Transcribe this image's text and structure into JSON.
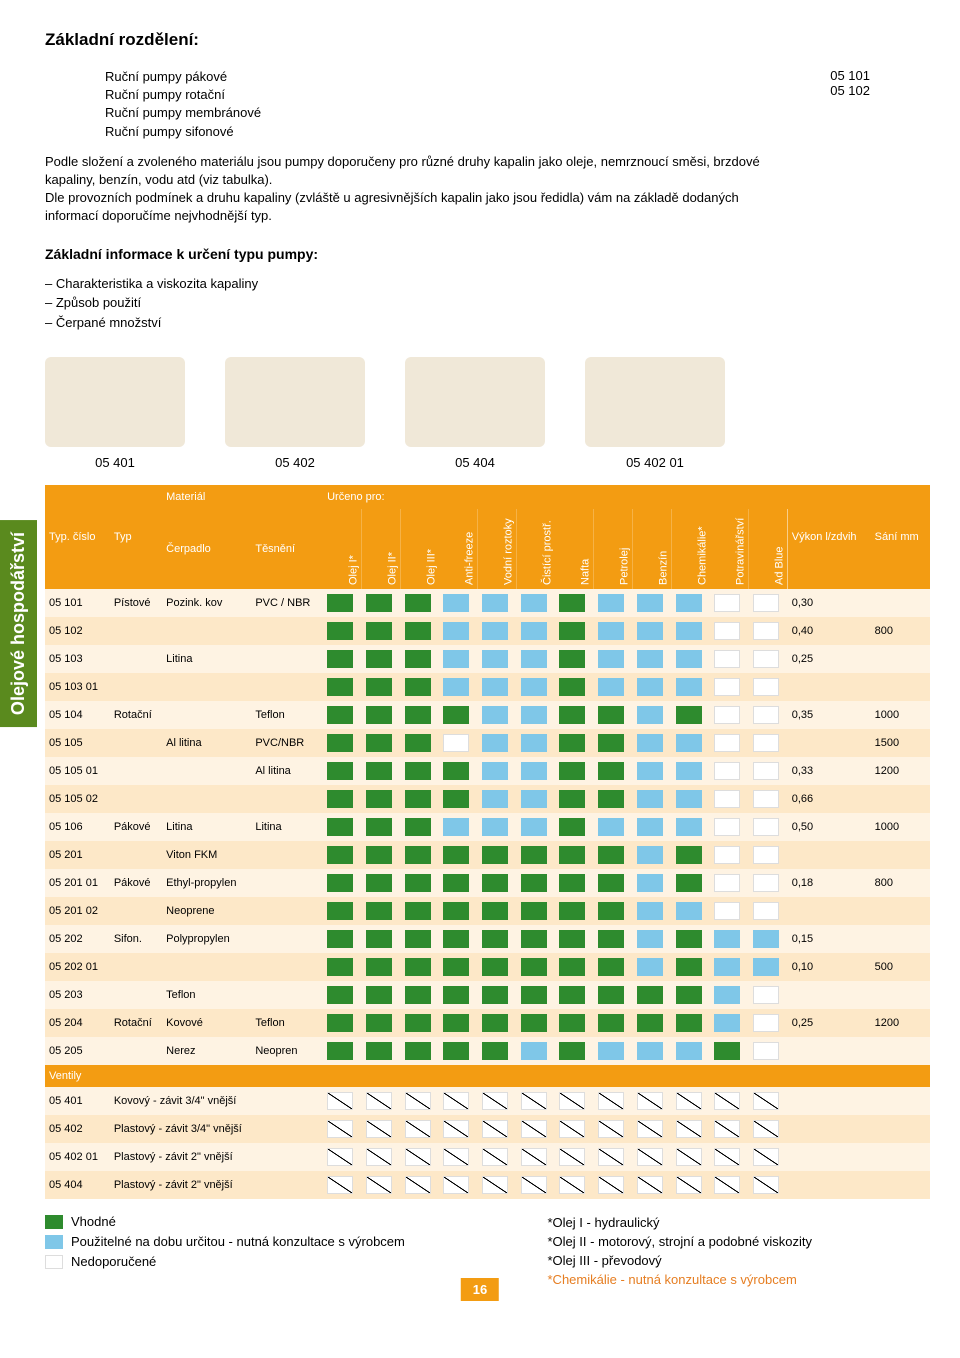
{
  "sidebar_label": "Olejové hospodářství",
  "heading": "Základní rozdělení:",
  "pump_types": [
    "Ruční pumpy pákové",
    "Ruční pumpy rotační",
    "Ruční pumpy membránové",
    "Ruční pumpy sifonové"
  ],
  "intro_para1": "Podle složení a zvoleného materiálu jsou pumpy doporučeny pro různé druhy kapalin jako oleje, nemrznoucí směsi, brzdové kapaliny, benzín, vodu atd (viz tabulka).",
  "intro_para2": "Dle provozních podmínek a druhu kapaliny (zvláště u agresivnějších kapalin jako jsou ředidla) vám na základě dodaných informací doporučíme nejvhodnější typ.",
  "intro_codes": [
    "05 101",
    "05 102"
  ],
  "sub_heading": "Základní informace k určení typu pumpy:",
  "bullets": [
    "Charakteristika a viskozita kapaliny",
    "Způsob použití",
    "Čerpané množství"
  ],
  "product_labels": [
    "05 401",
    "05 402",
    "05 404",
    "05 402 01"
  ],
  "table_headers": {
    "typ_cislo": "Typ. číslo",
    "typ": "Typ",
    "material": "Materiál",
    "cerpadlo": "Čerpadlo",
    "tesneni": "Těsnění",
    "urceno": "Určeno pro:",
    "vykon": "Výkon l/zdvih",
    "sani": "Sání mm"
  },
  "liquid_cols": [
    "Olej I*",
    "Olej II*",
    "Olej III*",
    "Anti-freeze",
    "Vodní roztoky",
    "Čistící prostř.",
    "Nafta",
    "Petrolej",
    "Benzín",
    "Chemikálie*",
    "Potravinářství",
    "Ad Blue"
  ],
  "rows": [
    {
      "code": "05 101",
      "typ": "Pístové",
      "cerp": "Pozink. kov",
      "tes": "PVC / NBR",
      "cells": [
        "g",
        "g",
        "g",
        "b",
        "b",
        "b",
        "g",
        "b",
        "b",
        "b",
        "w",
        "w"
      ],
      "vykon": "0,30",
      "sani": ""
    },
    {
      "code": "05 102",
      "typ": "",
      "cerp": "",
      "tes": "",
      "cells": [
        "g",
        "g",
        "g",
        "b",
        "b",
        "b",
        "g",
        "b",
        "b",
        "b",
        "w",
        "w"
      ],
      "vykon": "0,40",
      "sani": "800"
    },
    {
      "code": "05 103",
      "typ": "",
      "cerp": "Litina",
      "tes": "",
      "cells": [
        "g",
        "g",
        "g",
        "b",
        "b",
        "b",
        "g",
        "b",
        "b",
        "b",
        "w",
        "w"
      ],
      "vykon": "0,25",
      "sani": ""
    },
    {
      "code": "05 103 01",
      "typ": "",
      "cerp": "",
      "tes": "",
      "cells": [
        "g",
        "g",
        "g",
        "b",
        "b",
        "b",
        "g",
        "b",
        "b",
        "b",
        "w",
        "w"
      ],
      "vykon": "",
      "sani": ""
    },
    {
      "code": "05 104",
      "typ": "Rotační",
      "cerp": "",
      "tes": "Teflon",
      "cells": [
        "g",
        "g",
        "g",
        "g",
        "b",
        "b",
        "g",
        "g",
        "b",
        "g",
        "w",
        "w"
      ],
      "vykon": "0,35",
      "sani": "1000"
    },
    {
      "code": "05 105",
      "typ": "",
      "cerp": "Al litina",
      "tes": "PVC/NBR",
      "cells": [
        "g",
        "g",
        "g",
        "w",
        "b",
        "b",
        "g",
        "g",
        "b",
        "b",
        "w",
        "w"
      ],
      "vykon": "",
      "sani": "1500"
    },
    {
      "code": "05 105 01",
      "typ": "",
      "cerp": "",
      "tes": "Al litina",
      "cells": [
        "g",
        "g",
        "g",
        "g",
        "b",
        "b",
        "g",
        "g",
        "b",
        "b",
        "w",
        "w"
      ],
      "vykon": "0,33",
      "sani": "1200"
    },
    {
      "code": "05 105 02",
      "typ": "",
      "cerp": "",
      "tes": "",
      "cells": [
        "g",
        "g",
        "g",
        "g",
        "b",
        "b",
        "g",
        "g",
        "b",
        "b",
        "w",
        "w"
      ],
      "vykon": "0,66",
      "sani": ""
    },
    {
      "code": "05 106",
      "typ": "Pákové",
      "cerp": "Litina",
      "tes": "Litina",
      "cells": [
        "g",
        "g",
        "g",
        "b",
        "b",
        "b",
        "g",
        "b",
        "b",
        "b",
        "w",
        "w"
      ],
      "vykon": "0,50",
      "sani": "1000"
    },
    {
      "code": "05 201",
      "typ": "",
      "cerp": "Viton FKM",
      "tes": "",
      "cells": [
        "g",
        "g",
        "g",
        "g",
        "g",
        "g",
        "g",
        "g",
        "b",
        "g",
        "w",
        "w"
      ],
      "vykon": "",
      "sani": ""
    },
    {
      "code": "05 201 01",
      "typ": "Pákové",
      "cerp": "Ethyl-propylen",
      "tes": "",
      "cells": [
        "g",
        "g",
        "g",
        "g",
        "g",
        "g",
        "g",
        "g",
        "b",
        "g",
        "w",
        "w"
      ],
      "vykon": "0,18",
      "sani": "800"
    },
    {
      "code": "05 201 02",
      "typ": "",
      "cerp": "Neoprene",
      "tes": "",
      "cells": [
        "g",
        "g",
        "g",
        "g",
        "g",
        "g",
        "g",
        "g",
        "b",
        "b",
        "w",
        "w"
      ],
      "vykon": "",
      "sani": ""
    },
    {
      "code": "05 202",
      "typ": "Sifon.",
      "cerp": "Polypropylen",
      "tes": "",
      "cells": [
        "g",
        "g",
        "g",
        "g",
        "g",
        "g",
        "g",
        "g",
        "b",
        "g",
        "b",
        "b"
      ],
      "vykon": "0,15",
      "sani": ""
    },
    {
      "code": "05 202 01",
      "typ": "",
      "cerp": "",
      "tes": "",
      "cells": [
        "g",
        "g",
        "g",
        "g",
        "g",
        "g",
        "g",
        "g",
        "b",
        "g",
        "b",
        "b"
      ],
      "vykon": "0,10",
      "sani": "500"
    },
    {
      "code": "05 203",
      "typ": "",
      "cerp": "Teflon",
      "tes": "",
      "cells": [
        "g",
        "g",
        "g",
        "g",
        "g",
        "g",
        "g",
        "g",
        "g",
        "g",
        "b",
        "w"
      ],
      "vykon": "",
      "sani": ""
    },
    {
      "code": "05 204",
      "typ": "Rotační",
      "cerp": "Kovové",
      "tes": "Teflon",
      "cells": [
        "g",
        "g",
        "g",
        "g",
        "g",
        "g",
        "g",
        "g",
        "g",
        "g",
        "b",
        "w"
      ],
      "vykon": "0,25",
      "sani": "1200"
    },
    {
      "code": "05 205",
      "typ": "",
      "cerp": "Nerez",
      "tes": "Neopren",
      "cells": [
        "g",
        "g",
        "g",
        "g",
        "g",
        "b",
        "g",
        "b",
        "b",
        "b",
        "g",
        "w"
      ],
      "vykon": "",
      "sani": ""
    }
  ],
  "ventily_label": "Ventily",
  "ventily_rows": [
    {
      "code": "05 401",
      "desc": "Kovový - závit 3/4\" vnější"
    },
    {
      "code": "05 402",
      "desc": "Plastový - závit 3/4\" vnější"
    },
    {
      "code": "05 402 01",
      "desc": "Plastový - závit 2\" vnější"
    },
    {
      "code": "05 404",
      "desc": "Plastový - závit 2\" vnější"
    }
  ],
  "legend": {
    "vhodne": "Vhodné",
    "pouzitelne": "Použitelné na dobu určitou - nutná konzultace s výrobcem",
    "nedoporucene": "Nedoporučené",
    "olej1": "*Olej I - hydraulický",
    "olej2": "*Olej II - motorový, strojní a podobné viskozity",
    "olej3": "*Olej III - převodový",
    "chem": "*Chemikálie - nutná konzultace s výrobcem"
  },
  "page_num": "16",
  "colors": {
    "orange": "#f39c12",
    "green_ok": "#2e8b2e",
    "blue_maybe": "#7fc7e8",
    "sidebar": "#5a8a1e"
  }
}
